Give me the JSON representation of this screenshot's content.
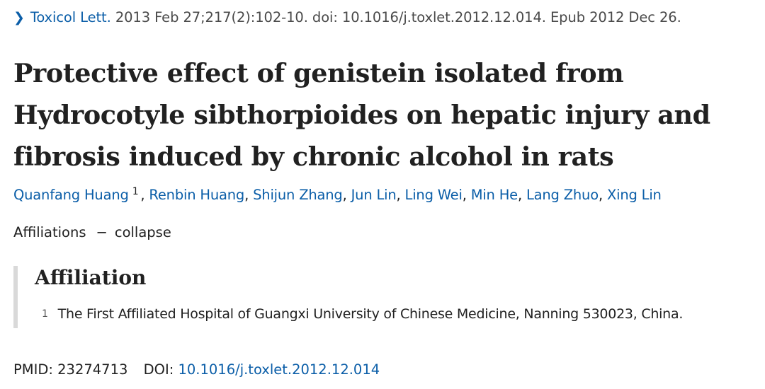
{
  "citation": {
    "journal": "Toxicol Lett.",
    "details": "2013 Feb 27;217(2):102-10. doi: 10.1016/j.toxlet.2012.12.014. Epub 2012 Dec 26."
  },
  "title": "Protective effect of genistein isolated from Hydrocotyle sibthorpioides on hepatic injury and fibrosis induced by chronic alcohol in rats",
  "authors": [
    {
      "name": "Quanfang Huang",
      "affil": "1"
    },
    {
      "name": "Renbin Huang"
    },
    {
      "name": "Shijun Zhang"
    },
    {
      "name": "Jun Lin"
    },
    {
      "name": "Ling Wei"
    },
    {
      "name": "Min He"
    },
    {
      "name": "Lang Zhuo"
    },
    {
      "name": "Xing Lin"
    }
  ],
  "affiliations_toggle": {
    "label": "Affiliations",
    "dash": "−",
    "action": "collapse"
  },
  "affiliation": {
    "heading": "Affiliation",
    "items": [
      {
        "num": "1",
        "text": "The First Affiliated Hospital of Guangxi University of Chinese Medicine, Nanning 530023, China."
      }
    ]
  },
  "identifiers": {
    "pmid_label": "PMID:",
    "pmid": "23274713",
    "doi_label": "DOI:",
    "doi": "10.1016/j.toxlet.2012.12.014"
  },
  "colors": {
    "link": "#0b5ea8",
    "text": "#212121",
    "rule": "#d9d9d9"
  }
}
